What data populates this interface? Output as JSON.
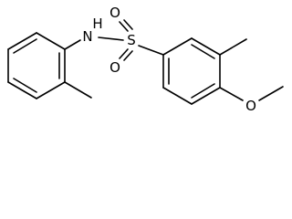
{
  "atoms": [
    {
      "label": "N"
    },
    {
      "label": "H"
    },
    {
      "label": "S"
    },
    {
      "label": "O"
    },
    {
      "label": "O"
    },
    {
      "label": "O"
    }
  ]
}
